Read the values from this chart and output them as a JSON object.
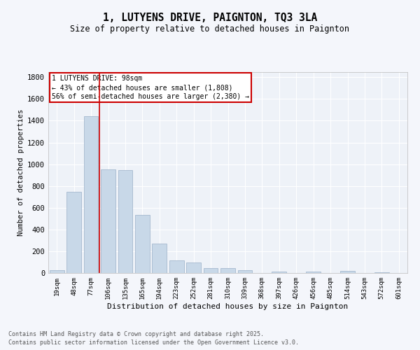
{
  "title": "1, LUTYENS DRIVE, PAIGNTON, TQ3 3LA",
  "subtitle": "Size of property relative to detached houses in Paignton",
  "xlabel": "Distribution of detached houses by size in Paignton",
  "ylabel": "Number of detached properties",
  "categories": [
    "19sqm",
    "48sqm",
    "77sqm",
    "106sqm",
    "135sqm",
    "165sqm",
    "194sqm",
    "223sqm",
    "252sqm",
    "281sqm",
    "310sqm",
    "339sqm",
    "368sqm",
    "397sqm",
    "426sqm",
    "456sqm",
    "485sqm",
    "514sqm",
    "543sqm",
    "572sqm",
    "601sqm"
  ],
  "values": [
    25,
    748,
    1440,
    950,
    945,
    535,
    270,
    115,
    95,
    42,
    48,
    28,
    0,
    15,
    0,
    12,
    0,
    18,
    0,
    5,
    0
  ],
  "bar_color": "#c8d8e8",
  "bar_edge_color": "#9ab0c8",
  "background_color": "#eef2f8",
  "grid_color": "#ffffff",
  "fig_background": "#f4f6fb",
  "annotation_text_line1": "1 LUTYENS DRIVE: 98sqm",
  "annotation_text_line2": "← 43% of detached houses are smaller (1,808)",
  "annotation_text_line3": "56% of semi-detached houses are larger (2,380) →",
  "annotation_box_color": "#ffffff",
  "annotation_box_edge_color": "#cc0000",
  "red_line_color": "#cc0000",
  "ylim": [
    0,
    1850
  ],
  "yticks": [
    0,
    200,
    400,
    600,
    800,
    1000,
    1200,
    1400,
    1600,
    1800
  ],
  "footer_line1": "Contains HM Land Registry data © Crown copyright and database right 2025.",
  "footer_line2": "Contains public sector information licensed under the Open Government Licence v3.0."
}
